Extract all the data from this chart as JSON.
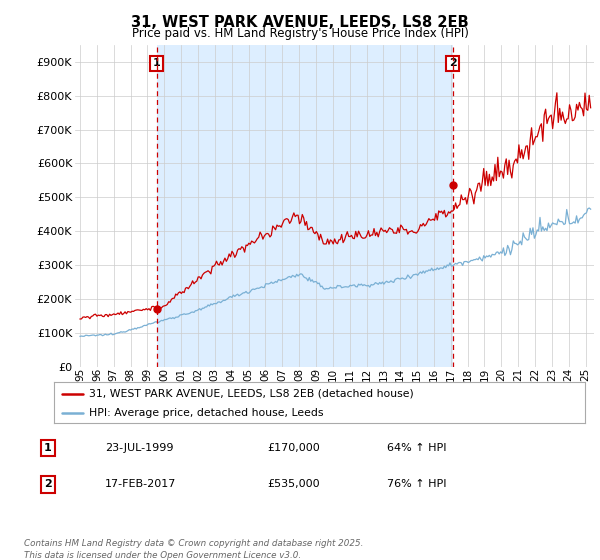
{
  "title": "31, WEST PARK AVENUE, LEEDS, LS8 2EB",
  "subtitle": "Price paid vs. HM Land Registry's House Price Index (HPI)",
  "ylabel_ticks": [
    "£0",
    "£100K",
    "£200K",
    "£300K",
    "£400K",
    "£500K",
    "£600K",
    "£700K",
    "£800K",
    "£900K"
  ],
  "ytick_vals": [
    0,
    100000,
    200000,
    300000,
    400000,
    500000,
    600000,
    700000,
    800000,
    900000
  ],
  "ylim": [
    0,
    950000
  ],
  "xlim_start": 1994.7,
  "xlim_end": 2025.5,
  "sale1_year": 1999.55,
  "sale1_price": 170000,
  "sale1_label": "1",
  "sale1_date": "23-JUL-1999",
  "sale1_hpi": "64% ↑ HPI",
  "sale2_year": 2017.12,
  "sale2_price": 535000,
  "sale2_label": "2",
  "sale2_date": "17-FEB-2017",
  "sale2_hpi": "76% ↑ HPI",
  "line1_color": "#cc0000",
  "line2_color": "#7ab0d4",
  "shade_color": "#ddeeff",
  "legend1_label": "31, WEST PARK AVENUE, LEEDS, LS8 2EB (detached house)",
  "legend2_label": "HPI: Average price, detached house, Leeds",
  "footnote": "Contains HM Land Registry data © Crown copyright and database right 2025.\nThis data is licensed under the Open Government Licence v3.0.",
  "background_color": "#ffffff",
  "grid_color": "#cccccc",
  "annotation_box_color": "#cc0000"
}
